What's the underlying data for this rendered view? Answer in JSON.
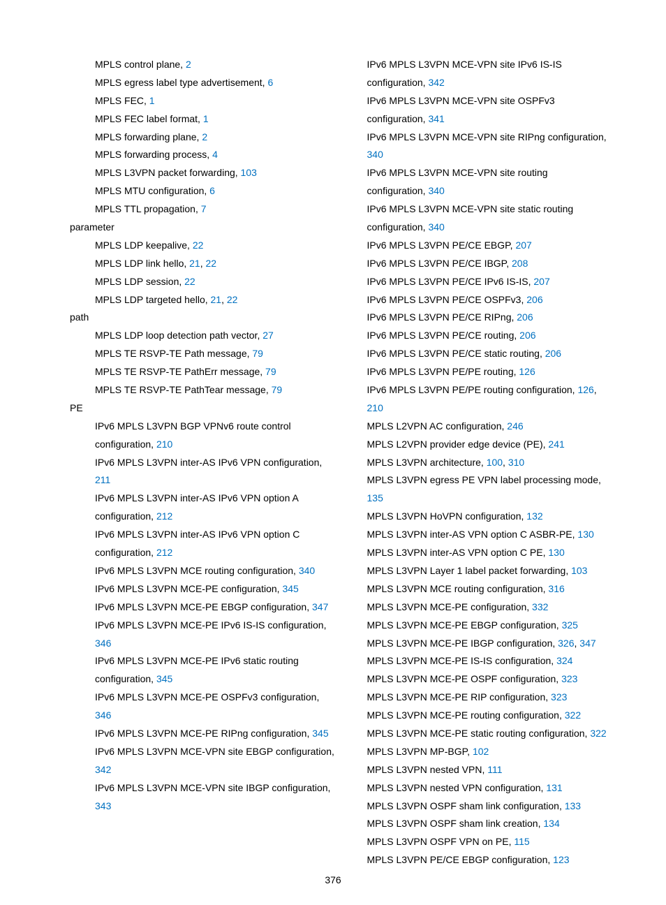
{
  "page_number": "376",
  "link_color": "#0070c0",
  "left": [
    {
      "indent": 1,
      "text": "MPLS control plane, ",
      "pages": [
        "2"
      ]
    },
    {
      "indent": 1,
      "text": "MPLS egress label type advertisement, ",
      "pages": [
        "6"
      ]
    },
    {
      "indent": 1,
      "text": "MPLS FEC, ",
      "pages": [
        "1"
      ]
    },
    {
      "indent": 1,
      "text": "MPLS FEC label format, ",
      "pages": [
        "1"
      ]
    },
    {
      "indent": 1,
      "text": "MPLS forwarding plane, ",
      "pages": [
        "2"
      ]
    },
    {
      "indent": 1,
      "text": "MPLS forwarding process, ",
      "pages": [
        "4"
      ]
    },
    {
      "indent": 1,
      "text": "MPLS L3VPN packet forwarding, ",
      "pages": [
        "103"
      ]
    },
    {
      "indent": 1,
      "text": "MPLS MTU configuration, ",
      "pages": [
        "6"
      ]
    },
    {
      "indent": 1,
      "text": "MPLS TTL propagation, ",
      "pages": [
        "7"
      ]
    },
    {
      "indent": 0,
      "text": "parameter",
      "pages": []
    },
    {
      "indent": 1,
      "text": "MPLS LDP keepalive, ",
      "pages": [
        "22"
      ]
    },
    {
      "indent": 1,
      "text": "MPLS LDP link hello, ",
      "pages": [
        "21",
        "22"
      ]
    },
    {
      "indent": 1,
      "text": "MPLS LDP session, ",
      "pages": [
        "22"
      ]
    },
    {
      "indent": 1,
      "text": "MPLS LDP targeted hello, ",
      "pages": [
        "21",
        "22"
      ]
    },
    {
      "indent": 0,
      "text": "path",
      "pages": []
    },
    {
      "indent": 1,
      "text": "MPLS LDP loop detection path vector, ",
      "pages": [
        "27"
      ]
    },
    {
      "indent": 1,
      "text": "MPLS TE RSVP-TE Path message, ",
      "pages": [
        "79"
      ]
    },
    {
      "indent": 1,
      "text": "MPLS TE RSVP-TE PathErr message, ",
      "pages": [
        "79"
      ]
    },
    {
      "indent": 1,
      "text": "MPLS TE RSVP-TE PathTear message, ",
      "pages": [
        "79"
      ]
    },
    {
      "indent": 0,
      "text": "PE",
      "pages": []
    },
    {
      "indent": 1,
      "text": "IPv6 MPLS L3VPN BGP VPNv6 route control configuration, ",
      "pages": [
        "210"
      ]
    },
    {
      "indent": 1,
      "text": "IPv6 MPLS L3VPN inter-AS IPv6 VPN configuration, ",
      "pages": [
        "211"
      ]
    },
    {
      "indent": 1,
      "text": "IPv6 MPLS L3VPN inter-AS IPv6 VPN option A configuration, ",
      "pages": [
        "212"
      ]
    },
    {
      "indent": 1,
      "text": "IPv6 MPLS L3VPN inter-AS IPv6 VPN option C configuration, ",
      "pages": [
        "212"
      ]
    },
    {
      "indent": 1,
      "text": "IPv6 MPLS L3VPN MCE routing configuration, ",
      "pages": [
        "340"
      ]
    },
    {
      "indent": 1,
      "text": "IPv6 MPLS L3VPN MCE-PE configuration, ",
      "pages": [
        "345"
      ]
    },
    {
      "indent": 1,
      "text": "IPv6 MPLS L3VPN MCE-PE EBGP configuration, ",
      "pages": [
        "347"
      ]
    },
    {
      "indent": 1,
      "text": "IPv6 MPLS L3VPN MCE-PE IPv6 IS-IS configuration, ",
      "pages": [
        "346"
      ]
    },
    {
      "indent": 1,
      "text": "IPv6 MPLS L3VPN MCE-PE IPv6 static routing configuration, ",
      "pages": [
        "345"
      ]
    },
    {
      "indent": 1,
      "text": "IPv6 MPLS L3VPN MCE-PE OSPFv3 configuration, ",
      "pages": [
        "346"
      ]
    },
    {
      "indent": 1,
      "text": "IPv6 MPLS L3VPN MCE-PE RIPng configuration, ",
      "pages": [
        "345"
      ]
    },
    {
      "indent": 1,
      "text": "IPv6 MPLS L3VPN MCE-VPN site EBGP configuration, ",
      "pages": [
        "342"
      ]
    },
    {
      "indent": 1,
      "text": "IPv6 MPLS L3VPN MCE-VPN site IBGP configuration, ",
      "pages": [
        "343"
      ]
    }
  ],
  "right": [
    {
      "indent": 1,
      "text": "IPv6 MPLS L3VPN MCE-VPN site IPv6 IS-IS configuration, ",
      "pages": [
        "342"
      ]
    },
    {
      "indent": 1,
      "text": "IPv6 MPLS L3VPN MCE-VPN site OSPFv3 configuration, ",
      "pages": [
        "341"
      ]
    },
    {
      "indent": 1,
      "text": "IPv6 MPLS L3VPN MCE-VPN site RIPng configuration, ",
      "pages": [
        "340"
      ]
    },
    {
      "indent": 1,
      "text": "IPv6 MPLS L3VPN MCE-VPN site routing configuration, ",
      "pages": [
        "340"
      ]
    },
    {
      "indent": 1,
      "text": "IPv6 MPLS L3VPN MCE-VPN site static routing configuration, ",
      "pages": [
        "340"
      ]
    },
    {
      "indent": 1,
      "text": "IPv6 MPLS L3VPN PE/CE EBGP, ",
      "pages": [
        "207"
      ]
    },
    {
      "indent": 1,
      "text": "IPv6 MPLS L3VPN PE/CE IBGP, ",
      "pages": [
        "208"
      ]
    },
    {
      "indent": 1,
      "text": "IPv6 MPLS L3VPN PE/CE IPv6 IS-IS, ",
      "pages": [
        "207"
      ]
    },
    {
      "indent": 1,
      "text": "IPv6 MPLS L3VPN PE/CE OSPFv3, ",
      "pages": [
        "206"
      ]
    },
    {
      "indent": 1,
      "text": "IPv6 MPLS L3VPN PE/CE RIPng, ",
      "pages": [
        "206"
      ]
    },
    {
      "indent": 1,
      "text": "IPv6 MPLS L3VPN PE/CE routing, ",
      "pages": [
        "206"
      ]
    },
    {
      "indent": 1,
      "text": "IPv6 MPLS L3VPN PE/CE static routing, ",
      "pages": [
        "206"
      ]
    },
    {
      "indent": 1,
      "text": "IPv6 MPLS L3VPN PE/PE routing, ",
      "pages": [
        "126"
      ]
    },
    {
      "indent": 1,
      "text": "IPv6 MPLS L3VPN PE/PE routing configuration, ",
      "pages": [
        "126",
        "210"
      ]
    },
    {
      "indent": 1,
      "text": "MPLS L2VPN AC configuration, ",
      "pages": [
        "246"
      ]
    },
    {
      "indent": 1,
      "text": "MPLS L2VPN provider edge device (PE), ",
      "pages": [
        "241"
      ]
    },
    {
      "indent": 1,
      "text": "MPLS L3VPN architecture, ",
      "pages": [
        "100",
        "310"
      ]
    },
    {
      "indent": 1,
      "text": "MPLS L3VPN egress PE VPN label processing mode, ",
      "pages": [
        "135"
      ]
    },
    {
      "indent": 1,
      "text": "MPLS L3VPN HoVPN configuration, ",
      "pages": [
        "132"
      ]
    },
    {
      "indent": 1,
      "text": "MPLS L3VPN inter-AS VPN option C ASBR-PE, ",
      "pages": [
        "130"
      ]
    },
    {
      "indent": 1,
      "text": "MPLS L3VPN inter-AS VPN option C PE, ",
      "pages": [
        "130"
      ]
    },
    {
      "indent": 1,
      "text": "MPLS L3VPN Layer 1 label packet forwarding, ",
      "pages": [
        "103"
      ]
    },
    {
      "indent": 1,
      "text": "MPLS L3VPN MCE routing configuration, ",
      "pages": [
        "316"
      ]
    },
    {
      "indent": 1,
      "text": "MPLS L3VPN MCE-PE configuration, ",
      "pages": [
        "332"
      ]
    },
    {
      "indent": 1,
      "text": "MPLS L3VPN MCE-PE EBGP configuration, ",
      "pages": [
        "325"
      ]
    },
    {
      "indent": 1,
      "text": "MPLS L3VPN MCE-PE IBGP configuration, ",
      "pages": [
        "326",
        "347"
      ]
    },
    {
      "indent": 1,
      "text": "MPLS L3VPN MCE-PE IS-IS configuration, ",
      "pages": [
        "324"
      ]
    },
    {
      "indent": 1,
      "text": "MPLS L3VPN MCE-PE OSPF configuration, ",
      "pages": [
        "323"
      ]
    },
    {
      "indent": 1,
      "text": "MPLS L3VPN MCE-PE RIP configuration, ",
      "pages": [
        "323"
      ]
    },
    {
      "indent": 1,
      "text": "MPLS L3VPN MCE-PE routing configuration, ",
      "pages": [
        "322"
      ]
    },
    {
      "indent": 1,
      "text": "MPLS L3VPN MCE-PE static routing configuration, ",
      "pages": [
        "322"
      ]
    },
    {
      "indent": 1,
      "text": "MPLS L3VPN MP-BGP, ",
      "pages": [
        "102"
      ]
    },
    {
      "indent": 1,
      "text": "MPLS L3VPN nested VPN, ",
      "pages": [
        "111"
      ]
    },
    {
      "indent": 1,
      "text": "MPLS L3VPN nested VPN configuration, ",
      "pages": [
        "131"
      ]
    },
    {
      "indent": 1,
      "text": "MPLS L3VPN OSPF sham link configuration, ",
      "pages": [
        "133"
      ]
    },
    {
      "indent": 1,
      "text": "MPLS L3VPN OSPF sham link creation, ",
      "pages": [
        "134"
      ]
    },
    {
      "indent": 1,
      "text": "MPLS L3VPN OSPF VPN on PE, ",
      "pages": [
        "115"
      ]
    },
    {
      "indent": 1,
      "text": "MPLS L3VPN PE/CE EBGP configuration, ",
      "pages": [
        "123"
      ]
    }
  ]
}
